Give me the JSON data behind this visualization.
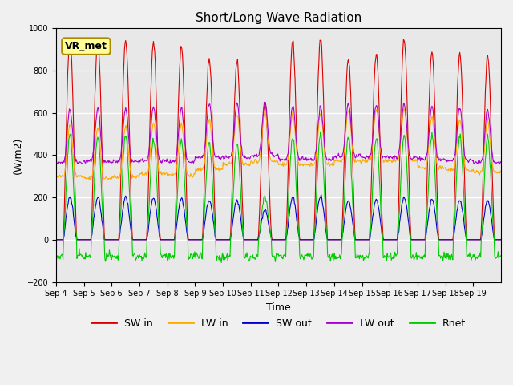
{
  "title": "Short/Long Wave Radiation",
  "ylabel": "(W/m2)",
  "xlabel": "Time",
  "station_label": "VR_met",
  "ylim": [
    -200,
    1000
  ],
  "background_color": "#e8e8e8",
  "grid_color": "white",
  "legend": {
    "SW in": "#dd0000",
    "LW in": "#ffaa00",
    "SW out": "#0000cc",
    "LW out": "#aa00cc",
    "Rnet": "#00cc00"
  },
  "xtick_labels": [
    "Sep 4",
    "Sep 5",
    "Sep 6",
    "Sep 7",
    "Sep 8",
    "Sep 9",
    "Sep 10",
    "Sep 11",
    "Sep 12",
    "Sep 13",
    "Sep 14",
    "Sep 15",
    "Sep 16",
    "Sep 17",
    "Sep 18",
    "Sep 19"
  ],
  "n_days": 16,
  "sw_in_peaks": [
    950,
    940,
    940,
    930,
    910,
    860,
    840,
    650,
    940,
    950,
    860,
    880,
    950,
    890,
    880,
    870
  ],
  "lw_in_base": [
    300,
    290,
    295,
    310,
    305,
    330,
    355,
    370,
    355,
    355,
    370,
    375,
    375,
    340,
    330,
    320
  ],
  "lw_out_base": [
    365,
    370,
    370,
    375,
    370,
    390,
    390,
    400,
    380,
    380,
    395,
    390,
    390,
    380,
    375,
    365
  ],
  "sw_out_peaks": [
    200,
    200,
    200,
    195,
    195,
    185,
    185,
    140,
    200,
    205,
    185,
    190,
    200,
    190,
    185,
    185
  ],
  "rnet_peaks": [
    500,
    490,
    490,
    475,
    470,
    460,
    450,
    205,
    490,
    500,
    490,
    485,
    495,
    490,
    490,
    485
  ]
}
